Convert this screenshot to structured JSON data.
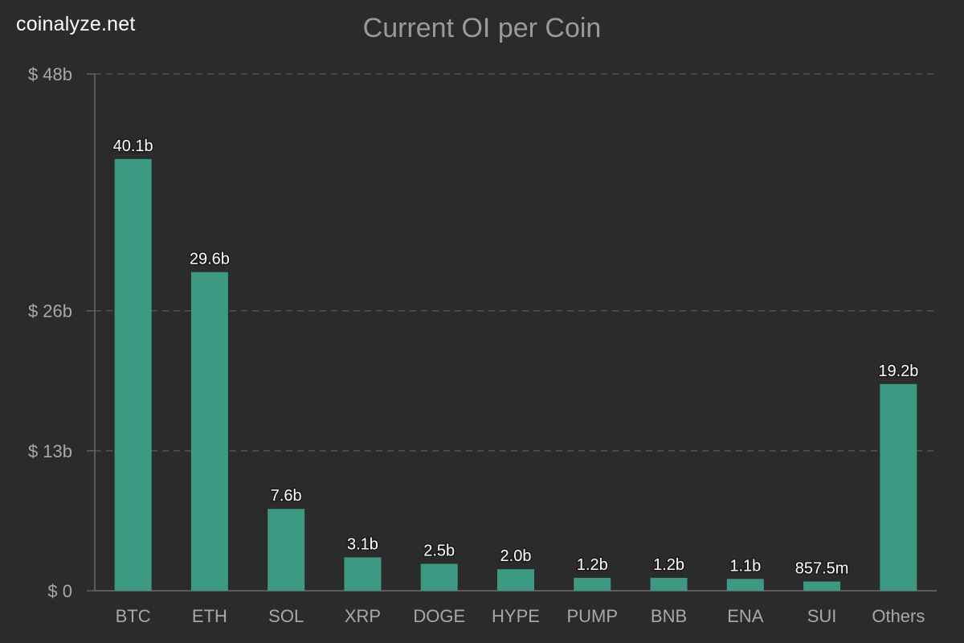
{
  "watermark": "coinalyze.net",
  "chart_data": {
    "type": "bar",
    "title": "Current OI per Coin",
    "xlabel": "",
    "ylabel": "",
    "categories": [
      "BTC",
      "ETH",
      "SOL",
      "XRP",
      "DOGE",
      "HYPE",
      "PUMP",
      "BNB",
      "ENA",
      "SUI",
      "Others"
    ],
    "values": [
      40.1,
      29.6,
      7.6,
      3.1,
      2.5,
      2.0,
      1.2,
      1.2,
      1.1,
      0.8575,
      19.2
    ],
    "value_labels": [
      "40.1b",
      "29.6b",
      "7.6b",
      "3.1b",
      "2.5b",
      "2.0b",
      "1.2b",
      "1.2b",
      "1.1b",
      "857.5m",
      "19.2b"
    ],
    "unit": "billions USD",
    "ylim": [
      0,
      48
    ],
    "yticks": [
      0,
      13,
      26,
      48
    ],
    "ytick_labels": [
      "$ 0",
      "$ 13b",
      "$ 26b",
      "$ 48b"
    ],
    "grid": true,
    "legend": "none"
  },
  "colors": {
    "background": "#2b2b2b",
    "bar": "#3d9a82",
    "grid": "#5a5a5a",
    "axis": "#6a6a6a",
    "title": "#9a9a9a",
    "tick_text": "#a8a8a8",
    "label_text": "#ffffff"
  }
}
